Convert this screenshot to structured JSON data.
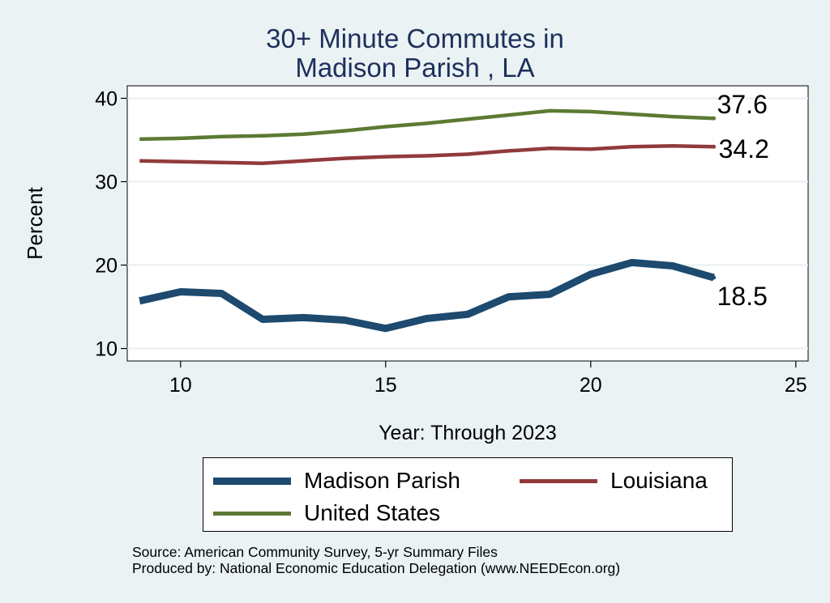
{
  "chart_data": {
    "type": "line",
    "title": [
      "30+ Minute Commutes in",
      "Madison Parish , LA"
    ],
    "xlabel": "Year: Through 2023",
    "ylabel": "Percent",
    "xlim": [
      8.7,
      25.3
    ],
    "ylim": [
      8.5,
      41.5
    ],
    "xticks": [
      10,
      15,
      20,
      25
    ],
    "yticks": [
      10,
      20,
      30,
      40
    ],
    "grid": true,
    "x": [
      9,
      10,
      11,
      12,
      13,
      14,
      15,
      16,
      17,
      18,
      19,
      20,
      21,
      22,
      23
    ],
    "series": [
      {
        "name": "Madison Parish",
        "color": "#1d4a6e",
        "width": "thick",
        "values": [
          15.7,
          16.8,
          16.6,
          13.5,
          13.7,
          13.4,
          12.4,
          13.6,
          14.1,
          16.2,
          16.5,
          18.9,
          20.3,
          19.9,
          18.5
        ],
        "end_label": "18.5"
      },
      {
        "name": "Louisiana",
        "color": "#913a3b",
        "width": "thin",
        "values": [
          32.5,
          32.4,
          32.3,
          32.2,
          32.5,
          32.8,
          33.0,
          33.1,
          33.3,
          33.7,
          34.0,
          33.9,
          34.2,
          34.3,
          34.2
        ],
        "end_label": "34.2"
      },
      {
        "name": "United States",
        "color": "#5c7a33",
        "width": "thin",
        "values": [
          35.1,
          35.2,
          35.4,
          35.5,
          35.7,
          36.1,
          36.6,
          37.0,
          37.5,
          38.0,
          38.5,
          38.4,
          38.1,
          37.8,
          37.6
        ],
        "end_label": "37.6"
      }
    ],
    "legend": {
      "position": "bottom",
      "entries": [
        "Madison Parish",
        "Louisiana",
        "United States"
      ]
    }
  },
  "footer": {
    "source": "Source: American Community Survey, 5-yr Summary Files",
    "produced_by": "Produced by: National Economic Education Delegation (www.NEEDEcon.org)"
  }
}
